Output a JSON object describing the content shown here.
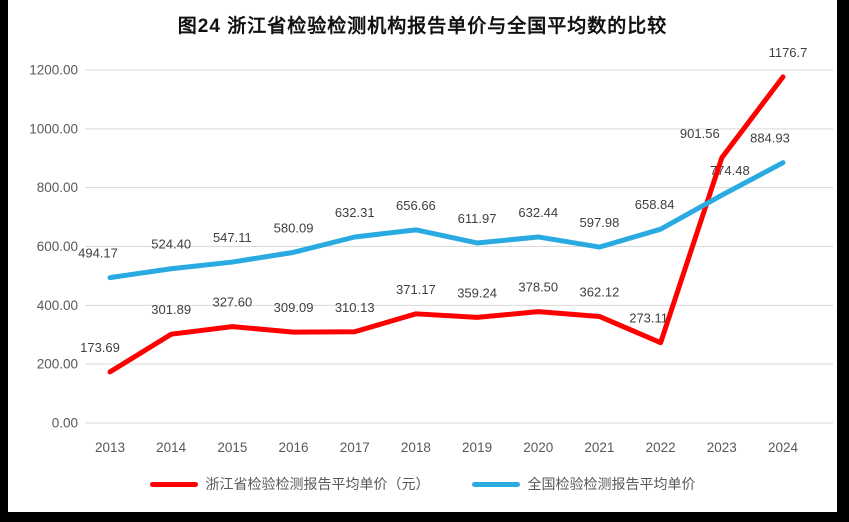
{
  "title": "图24  浙江省检验检测机构报告单价与全国平均数的比较",
  "chart_data": {
    "type": "line",
    "title": "图24  浙江省检验检测机构报告单价与全国平均数的比较",
    "categories": [
      "2013",
      "2014",
      "2015",
      "2016",
      "2017",
      "2018",
      "2019",
      "2020",
      "2021",
      "2022",
      "2023",
      "2024"
    ],
    "series": [
      {
        "name": "浙江省检验检测报告平均单价（元）",
        "color": "#FF0000",
        "values": [
          173.69,
          301.89,
          327.6,
          309.09,
          310.13,
          371.17,
          359.24,
          378.5,
          362.12,
          273.11,
          901.56,
          1176.7
        ],
        "labels": [
          "173.69",
          "301.89",
          "327.60",
          "309.09",
          "310.13",
          "371.17",
          "359.24",
          "378.50",
          "362.12",
          "273.11",
          "901.56",
          "1176.7"
        ]
      },
      {
        "name": "全国检验检测报告平均单价",
        "color": "#29ABE2",
        "values": [
          494.17,
          524.4,
          547.11,
          580.09,
          632.31,
          656.66,
          611.97,
          632.44,
          597.98,
          658.84,
          774.48,
          884.93
        ],
        "labels": [
          "494.17",
          "524.40",
          "547.11",
          "580.09",
          "632.31",
          "656.66",
          "611.97",
          "632.44",
          "597.98",
          "658.84",
          "774.48",
          "884.93"
        ]
      }
    ],
    "y_ticks": [
      "0.00",
      "200.00",
      "400.00",
      "600.00",
      "800.00",
      "1000.00",
      "1200.00"
    ],
    "ylim": [
      0,
      1200
    ],
    "grid": "horizontal-only",
    "legend_position": "bottom",
    "gridline_color": "#D9D9D9",
    "axis_text_color": "#595959",
    "data_label_color": "#3F3F3F"
  }
}
